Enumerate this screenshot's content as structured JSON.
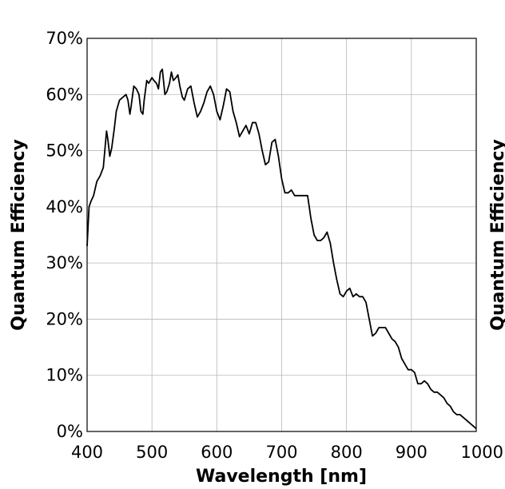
{
  "chart_data": [
    {
      "type": "line",
      "title": "",
      "xlabel": "Wavelength [nm]",
      "ylabel": "Quantum Efficiency",
      "xlim": [
        400,
        1000
      ],
      "ylim": [
        0,
        70
      ],
      "grid": true,
      "x_ticks": [
        "400",
        "500",
        "600",
        "700",
        "800",
        "900",
        "1000"
      ],
      "x_tick_values": [
        400,
        500,
        600,
        700,
        800,
        900,
        1000
      ],
      "y_ticks": [
        "0%",
        "10%",
        "20%",
        "30%",
        "40%",
        "50%",
        "60%",
        "70%"
      ],
      "y_tick_values": [
        0,
        10,
        20,
        30,
        40,
        50,
        60,
        70
      ],
      "series": [
        {
          "color": "#000000",
          "x": [
            400,
            403,
            406,
            410,
            415,
            420,
            425,
            430,
            432,
            435,
            438,
            442,
            445,
            450,
            455,
            460,
            463,
            466,
            468,
            472,
            476,
            480,
            483,
            486,
            488,
            492,
            495,
            500,
            503,
            507,
            510,
            513,
            516,
            520,
            523,
            527,
            530,
            533,
            537,
            540,
            543,
            547,
            550,
            555,
            560,
            565,
            570,
            575,
            580,
            585,
            590,
            595,
            600,
            605,
            610,
            615,
            620,
            625,
            630,
            635,
            640,
            645,
            650,
            655,
            660,
            665,
            670,
            675,
            680,
            685,
            690,
            695,
            700,
            705,
            710,
            715,
            720,
            725,
            730,
            735,
            740,
            745,
            750,
            755,
            760,
            765,
            770,
            775,
            780,
            785,
            790,
            795,
            800,
            805,
            810,
            815,
            820,
            825,
            830,
            835,
            840,
            845,
            850,
            855,
            860,
            865,
            870,
            875,
            880,
            885,
            890,
            895,
            900,
            905,
            910,
            915,
            920,
            925,
            930,
            935,
            940,
            945,
            950,
            955,
            960,
            965,
            970,
            975,
            980,
            985,
            990,
            995,
            1000
          ],
          "values": [
            33,
            40,
            41,
            42,
            44.5,
            45.5,
            47,
            53.5,
            52,
            49,
            50.5,
            54,
            57,
            59,
            59.5,
            60,
            59,
            56.5,
            58,
            61.5,
            61,
            60,
            57,
            56.5,
            59,
            62.5,
            62,
            63,
            62.5,
            62,
            61,
            64,
            64.5,
            60,
            60.5,
            62,
            64,
            62.5,
            63,
            63.5,
            61.5,
            59.5,
            59,
            61,
            61.5,
            58.5,
            56,
            57,
            58.5,
            60.5,
            61.5,
            60,
            57,
            55.5,
            58,
            61,
            60.5,
            57,
            55,
            52.5,
            53.5,
            54.5,
            53,
            55,
            55,
            53,
            50,
            47.5,
            48,
            51.5,
            52,
            49,
            45,
            42.5,
            42.5,
            43,
            42,
            42,
            42,
            42,
            42,
            38,
            35,
            34,
            34,
            34.5,
            35.5,
            33.5,
            30,
            27,
            24.5,
            24,
            25,
            25.5,
            24,
            24.5,
            24,
            24,
            23,
            20,
            17,
            17.5,
            18.5,
            18.5,
            18.5,
            17.5,
            16.5,
            16,
            15,
            13,
            12,
            11,
            11,
            10.5,
            8.5,
            8.5,
            9,
            8.5,
            7.5,
            7,
            7,
            6.5,
            6,
            5,
            4.5,
            3.5,
            3,
            3,
            2.5,
            2,
            1.5,
            1,
            0.5
          ]
        }
      ]
    },
    {
      "type": "line",
      "ylabel": "Quantum Efficiency"
    }
  ]
}
